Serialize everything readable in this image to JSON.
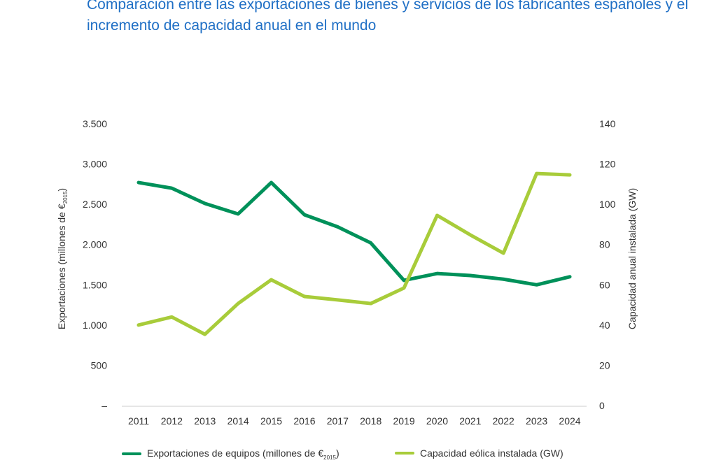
{
  "title": "Comparación entre las exportaciones de bienes y servicios de los fabricantes españoles y el incremento de capacidad anual en el mundo",
  "chart_data": {
    "type": "line",
    "title": "Comparación entre las exportaciones de bienes y servicios de los fabricantes españoles y el incremento de capacidad anual en el mundo",
    "categories": [
      "2011",
      "2012",
      "2013",
      "2014",
      "2015",
      "2016",
      "2017",
      "2018",
      "2019",
      "2020",
      "2021",
      "2022",
      "2023",
      "2024"
    ],
    "y_left": {
      "label": "Exportaciones (millones de €",
      "label_sub": "2015",
      "label_end": ")",
      "range": [
        0,
        3500
      ],
      "ticks": [
        "–",
        "500",
        "1.000",
        "1.500",
        "2.000",
        "2.500",
        "3.000",
        "3.500"
      ]
    },
    "y_right": {
      "label": "Capacidad  anual  instalada (GW)",
      "range": [
        0,
        140
      ],
      "ticks": [
        "0",
        "20",
        "40",
        "60",
        "80",
        "100",
        "120",
        "140"
      ]
    },
    "grid": false,
    "legend_position": "bottom",
    "series": [
      {
        "name": "Exportaciones de equipos (millones de €",
        "name_sub": "2015",
        "name_end": ")",
        "axis": "left",
        "color": "#00915a",
        "values": [
          2770,
          2700,
          2510,
          2380,
          2770,
          2370,
          2220,
          2020,
          1555,
          1640,
          1615,
          1570,
          1500,
          1600
        ]
      },
      {
        "name": "Capacidad eólica instalada (GW)",
        "axis": "right",
        "color": "#a8cc3a",
        "values": [
          40,
          44,
          35.4,
          50.7,
          62.5,
          54.2,
          52.5,
          50.7,
          58.4,
          94.5,
          84.8,
          75.7,
          115.3,
          114.6
        ]
      }
    ]
  }
}
